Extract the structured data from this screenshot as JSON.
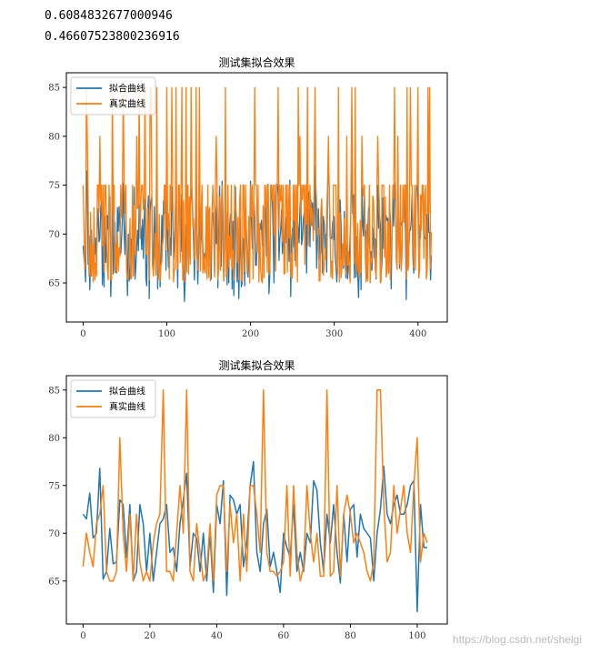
{
  "output": {
    "line1": "0.6084832677000946",
    "line2": "0.46607523800236916"
  },
  "watermark": "https://blog.csdn.net/shelgi",
  "colors": {
    "fit": "#1f77b4",
    "real": "#ff7f0e"
  },
  "chart_data": [
    {
      "type": "line",
      "title": "测试集拟合效果",
      "xlim": [
        -20,
        435
      ],
      "ylim": [
        61,
        86.5
      ],
      "xticks": [
        0,
        100,
        200,
        300,
        400
      ],
      "yticks": [
        65,
        70,
        75,
        80,
        85
      ],
      "legend": "top-left",
      "n_points": 417,
      "series": [
        {
          "name": "拟合曲线",
          "color": "#1f77b4",
          "seed": 11,
          "kind": "fit"
        },
        {
          "name": "真实曲线",
          "color": "#ff7f0e",
          "seed": 7,
          "kind": "real"
        }
      ]
    },
    {
      "type": "line",
      "title": "测试集拟合效果",
      "xlim": [
        -5,
        109
      ],
      "ylim": [
        60.5,
        86.5
      ],
      "xticks": [
        0,
        20,
        40,
        60,
        80,
        100
      ],
      "yticks": [
        65,
        70,
        75,
        80,
        85
      ],
      "legend": "top-left",
      "series": [
        {
          "name": "拟合曲线",
          "color": "#1f77b4",
          "values": [
            72.0,
            71.5,
            74.2,
            69.5,
            70.0,
            76.8,
            65.2,
            66.0,
            70.5,
            66.8,
            67.0,
            73.5,
            73.0,
            67.5,
            73.0,
            65.0,
            66.0,
            73.0,
            71.0,
            66.0,
            70.0,
            65.0,
            68.0,
            71.0,
            71.5,
            73.0,
            68.0,
            68.5,
            66.0,
            71.0,
            73.5,
            76.3,
            66.5,
            70.0,
            69.5,
            66.0,
            70.0,
            65.0,
            70.0,
            63.8,
            73.0,
            71.0,
            75.5,
            63.5,
            74.0,
            73.5,
            72.0,
            73.0,
            66.5,
            69.0,
            75.0,
            77.5,
            68.0,
            66.0,
            71.0,
            72.5,
            66.5,
            68.0,
            66.0,
            63.8,
            70.0,
            68.5,
            67.5,
            73.0,
            66.0,
            68.0,
            66.0,
            70.0,
            69.0,
            75.5,
            74.5,
            69.0,
            66.0,
            72.0,
            69.0,
            73.0,
            68.0,
            64.8,
            72.0,
            67.0,
            72.5,
            73.0,
            67.5,
            72.0,
            70.5,
            70.0,
            69.5,
            65.0,
            70.0,
            72.5,
            77.0,
            72.0,
            71.0,
            73.0,
            74.0,
            72.0,
            72.0,
            73.0,
            75.0,
            75.5,
            61.8,
            73.0,
            68.5,
            68.5
          ]
        },
        {
          "name": "真实曲线",
          "color": "#ff7f0e",
          "values": [
            66.5,
            70.0,
            68.0,
            66.5,
            71.0,
            72.0,
            75.0,
            66.0,
            65.0,
            65.0,
            66.0,
            80.0,
            70.0,
            66.0,
            72.0,
            65.0,
            72.0,
            67.0,
            65.0,
            66.0,
            65.0,
            69.0,
            71.0,
            72.0,
            85.0,
            66.0,
            66.0,
            65.0,
            70.0,
            75.0,
            70.0,
            85.0,
            66.0,
            65.0,
            71.0,
            68.0,
            65.0,
            66.0,
            71.0,
            65.0,
            74.0,
            75.0,
            75.0,
            66.0,
            73.0,
            69.0,
            72.0,
            65.0,
            72.0,
            66.0,
            75.0,
            75.0,
            72.0,
            68.0,
            85.0,
            68.0,
            66.0,
            66.0,
            65.5,
            66.0,
            67.0,
            75.0,
            65.5,
            75.0,
            68.0,
            65.0,
            66.5,
            75.0,
            70.0,
            67.0,
            70.0,
            65.5,
            65.5,
            85.0,
            65.5,
            66.0,
            75.0,
            65.5,
            72.0,
            74.0,
            72.0,
            69.0,
            70.0,
            69.0,
            68.0,
            66.0,
            65.0,
            67.0,
            85.0,
            85.0,
            73.0,
            67.0,
            68.0,
            75.0,
            70.0,
            72.5,
            75.0,
            70.0,
            68.0,
            75.0,
            80.0,
            67.0,
            70.0,
            69.0
          ]
        }
      ]
    }
  ]
}
